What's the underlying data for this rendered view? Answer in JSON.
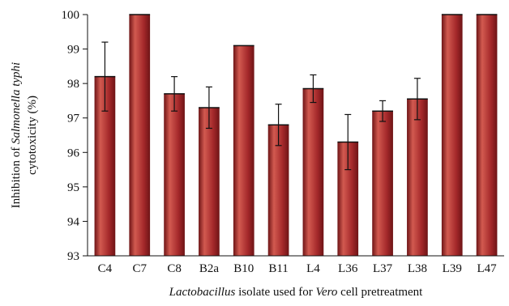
{
  "chart_data": {
    "type": "bar",
    "categories": [
      "C4",
      "C7",
      "C8",
      "B2a",
      "B10",
      "B11",
      "L4",
      "L36",
      "L37",
      "L38",
      "L39",
      "L47"
    ],
    "series": [
      {
        "values": [
          98.2,
          100,
          97.7,
          97.3,
          99.1,
          96.8,
          97.85,
          96.3,
          97.2,
          97.55,
          100,
          100
        ],
        "error": [
          1.0,
          0,
          0.5,
          0.6,
          0,
          0.6,
          0.4,
          0.8,
          0.3,
          0.6,
          0,
          0
        ]
      }
    ],
    "ylim": [
      93,
      100
    ],
    "yticks": [
      93,
      94,
      95,
      96,
      97,
      98,
      99,
      100
    ],
    "ylabel": {
      "line1_prefix": "Inhibition of ",
      "line1_italic": "Salmonella typhi",
      "line2": "cytotoxicity (%)"
    },
    "xlabel": {
      "part1_italic": "Lactobacillus",
      "part2": " isolate used for ",
      "part3_italic": "Vero",
      "part4": " cell pretreatment"
    },
    "grid": false,
    "legend": "none",
    "bar_color": "#a4282a",
    "bar_highlight": "#d25a50",
    "bar_shadow": "#6e1416"
  }
}
